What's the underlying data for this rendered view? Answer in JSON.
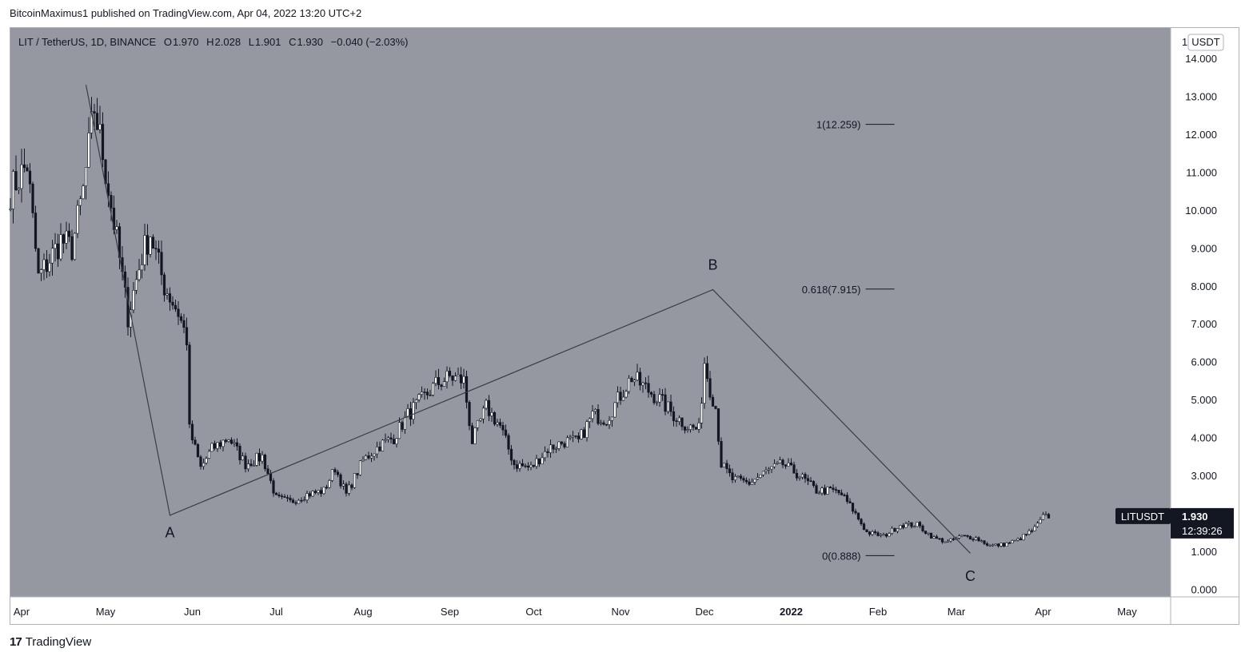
{
  "header": {
    "published_line": "BitcoinMaximus1 published on TradingView.com, Apr 04, 2022 13:20 UTC+2"
  },
  "symbol_info": {
    "symbol": "LIT / TetherUS, 1D, BINANCE",
    "open_label": "O",
    "open": "1.970",
    "high_label": "H",
    "high": "2.028",
    "low_label": "L",
    "low": "1.901",
    "close_label": "C",
    "close": "1.930",
    "change": "−0.040 (−2.03%)"
  },
  "colors": {
    "background": "#9598a1",
    "axis_background": "#ffffff",
    "candle_up": "#ffffff",
    "candle_down": "#131722",
    "wave_line": "#3a3d45",
    "price_tag": "#131722"
  },
  "footer": {
    "brand_logo": "17",
    "brand": "TradingView"
  },
  "chart_data": {
    "type": "candlestick",
    "title": "LIT / TetherUS, 1D, BINANCE",
    "currency_label": "USDT",
    "y_axis": {
      "ylim": [
        -0.2,
        14.8
      ],
      "ticks": [
        "0.000",
        "1.000",
        "2.000",
        "3.000",
        "4.000",
        "5.000",
        "6.000",
        "7.000",
        "8.000",
        "9.000",
        "10.000",
        "11.000",
        "12.000",
        "13.000",
        "14.000"
      ],
      "tick_values": [
        0,
        1,
        2,
        3,
        4,
        5,
        6,
        7,
        8,
        9,
        10,
        11,
        12,
        13,
        14
      ]
    },
    "x_axis": {
      "tick_labels": [
        "Apr",
        "May",
        "Jun",
        "Jul",
        "Aug",
        "Sep",
        "Oct",
        "Nov",
        "Dec",
        "2022",
        "Feb",
        "Mar",
        "Apr",
        "May"
      ],
      "tick_days": [
        4,
        34,
        65,
        95,
        126,
        157,
        187,
        218,
        248,
        279,
        310,
        338,
        369,
        399
      ],
      "bold": [
        "2022"
      ],
      "day0": "2021-03-28",
      "xlim_days": [
        0,
        410
      ]
    },
    "series": [
      {
        "name": "LITUSDT",
        "anchors": [
          [
            0,
            10.5
          ],
          [
            6,
            11.2
          ],
          [
            10,
            8.2
          ],
          [
            18,
            9.2
          ],
          [
            22,
            9.0
          ],
          [
            26,
            10.5
          ],
          [
            30,
            12.7
          ],
          [
            33,
            11.5
          ],
          [
            38,
            9.2
          ],
          [
            42,
            7.2
          ],
          [
            47,
            8.8
          ],
          [
            50,
            9.4
          ],
          [
            55,
            8.0
          ],
          [
            60,
            7.3
          ],
          [
            63,
            6.6
          ],
          [
            64,
            4.2
          ],
          [
            68,
            3.2
          ],
          [
            72,
            3.7
          ],
          [
            78,
            4.0
          ],
          [
            84,
            3.3
          ],
          [
            90,
            3.5
          ],
          [
            95,
            2.4
          ],
          [
            100,
            2.3
          ],
          [
            106,
            2.5
          ],
          [
            112,
            2.6
          ],
          [
            116,
            3.2
          ],
          [
            120,
            2.5
          ],
          [
            126,
            3.4
          ],
          [
            132,
            3.8
          ],
          [
            137,
            4.0
          ],
          [
            142,
            4.6
          ],
          [
            147,
            5.0
          ],
          [
            152,
            5.4
          ],
          [
            157,
            5.6
          ],
          [
            162,
            5.5
          ],
          [
            165,
            3.9
          ],
          [
            170,
            4.8
          ],
          [
            175,
            4.3
          ],
          [
            180,
            3.3
          ],
          [
            186,
            3.2
          ],
          [
            192,
            3.7
          ],
          [
            198,
            3.9
          ],
          [
            203,
            3.9
          ],
          [
            208,
            4.6
          ],
          [
            213,
            4.5
          ],
          [
            217,
            5.0
          ],
          [
            222,
            5.6
          ],
          [
            227,
            5.3
          ],
          [
            232,
            5.0
          ],
          [
            237,
            4.6
          ],
          [
            242,
            4.3
          ],
          [
            246,
            4.2
          ],
          [
            248,
            6.0
          ],
          [
            250,
            5.3
          ],
          [
            252,
            4.8
          ],
          [
            254,
            3.3
          ],
          [
            258,
            2.9
          ],
          [
            264,
            2.8
          ],
          [
            270,
            3.1
          ],
          [
            276,
            3.3
          ],
          [
            282,
            3.0
          ],
          [
            288,
            2.6
          ],
          [
            294,
            2.6
          ],
          [
            297,
            2.5
          ],
          [
            301,
            2.1
          ],
          [
            306,
            1.5
          ],
          [
            312,
            1.4
          ],
          [
            318,
            1.7
          ],
          [
            324,
            1.7
          ],
          [
            330,
            1.35
          ],
          [
            335,
            1.25
          ],
          [
            340,
            1.4
          ],
          [
            345,
            1.35
          ],
          [
            350,
            1.15
          ],
          [
            355,
            1.18
          ],
          [
            360,
            1.3
          ],
          [
            366,
            1.6
          ],
          [
            369,
            1.9
          ],
          [
            371,
            1.93
          ]
        ]
      }
    ],
    "last_price": {
      "symbol": "LITUSDT",
      "price": 1.93,
      "price_label": "1.930",
      "countdown": "12:39:26"
    },
    "wave_labels": [
      {
        "label": "A",
        "day": 57,
        "price": 2.0
      },
      {
        "label": "B",
        "day": 251,
        "price": 7.9
      },
      {
        "label": "C",
        "day": 343,
        "price": 0.85
      }
    ],
    "wave_path": [
      [
        27,
        13.3
      ],
      [
        57,
        1.95
      ],
      [
        251,
        7.9
      ],
      [
        343,
        0.95
      ]
    ],
    "fib_levels": [
      {
        "label": "1(12.259)",
        "value": 12.259
      },
      {
        "label": "0.618(7.915)",
        "value": 7.915
      },
      {
        "label": "0(0.888)",
        "value": 0.888
      }
    ],
    "fib_day_range": [
      305,
      313
    ]
  }
}
